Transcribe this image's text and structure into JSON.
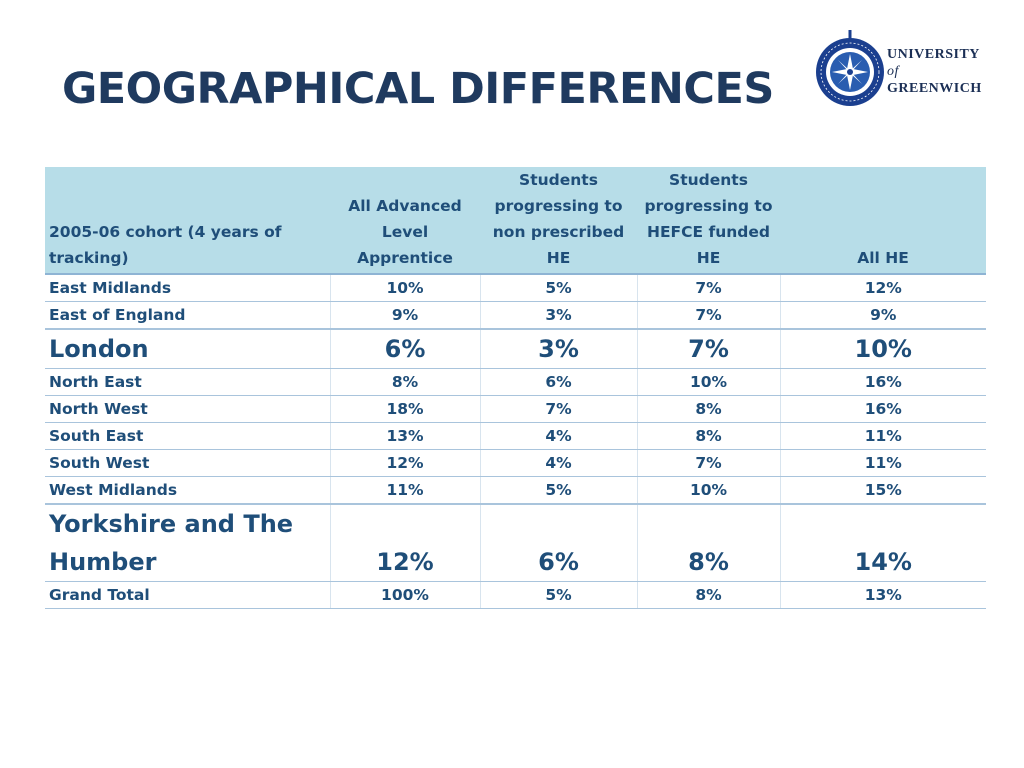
{
  "title": "GEOGRAPHICAL DIFFERENCES",
  "logo": {
    "line1": "UNIVERSITY",
    "line2": "of",
    "line3": "GREENWICH",
    "seal_text": "UNIVERSITY OF GREENWICH"
  },
  "colors": {
    "title": "#1f3a5f",
    "table_text": "#1f4e79",
    "header_bg": "#b7dde8",
    "row_line": "#a9c4dc"
  },
  "table": {
    "headers": [
      "2005-06 cohort (4 years of tracking)",
      "All Advanced Level Apprentice",
      "Students progressing to non prescribed HE",
      "Students progressing to HEFCE funded HE",
      "All  HE"
    ],
    "rows": [
      [
        "East Midlands",
        "10%",
        "5%",
        "7%",
        "12%"
      ],
      [
        "East of England",
        "9%",
        "3%",
        "7%",
        "9%"
      ],
      [
        "London",
        "6%",
        "3%",
        "7%",
        "10%"
      ],
      [
        "North East",
        "8%",
        "6%",
        "10%",
        "16%"
      ],
      [
        "North West",
        "18%",
        "7%",
        "8%",
        "16%"
      ],
      [
        "South East",
        "13%",
        "4%",
        "8%",
        "11%"
      ],
      [
        "South West",
        "12%",
        "4%",
        "7%",
        "11%"
      ],
      [
        "West Midlands",
        "11%",
        "5%",
        "10%",
        "15%"
      ],
      [
        "Yorkshire and The Humber",
        "12%",
        "6%",
        "8%",
        "14%"
      ],
      [
        "Grand Total",
        "100%",
        "5%",
        "8%",
        "13%"
      ]
    ]
  }
}
